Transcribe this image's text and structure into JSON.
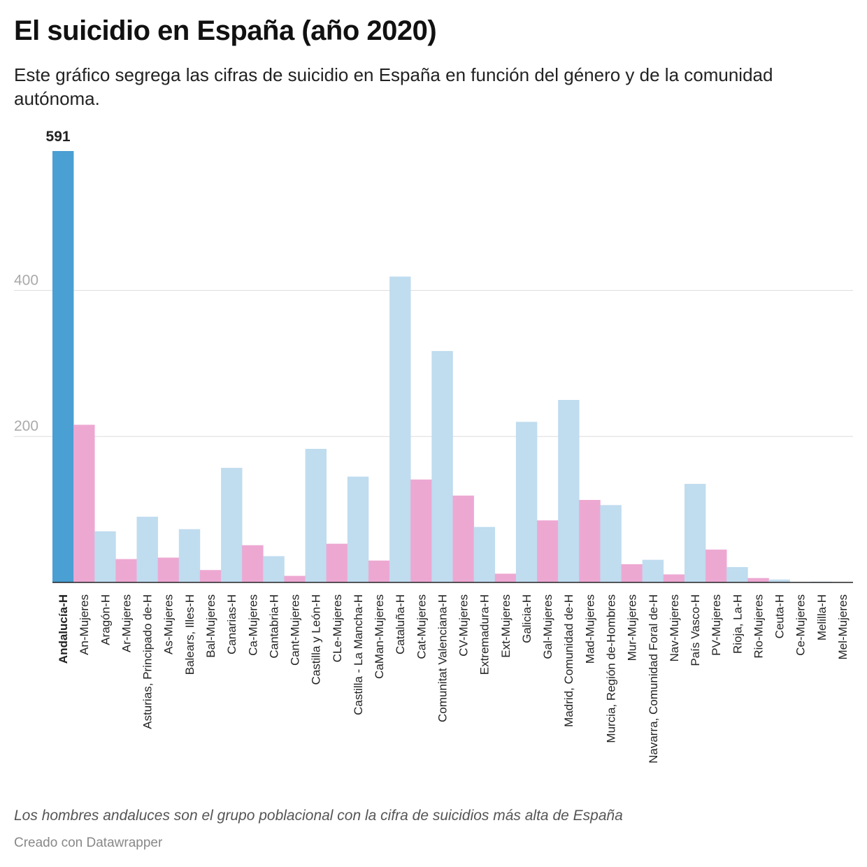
{
  "header": {
    "title": "El suicidio en España (año 2020)",
    "subtitle": "Este gráfico segrega las cifras de suicidio en España en función del género y de la comunidad autónoma."
  },
  "footer": {
    "note": "Los hombres andaluces son el grupo poblacional con la cifra de suicidios más alta de España",
    "credit": "Creado con Datawrapper"
  },
  "colors": {
    "highlight": "#4a9fd3",
    "hombres": "#c0dcef",
    "mujeres": "#eda8d2",
    "grid": "#dddddd",
    "tick_text": "#aaaaaa"
  },
  "chart_data": {
    "type": "bar",
    "ylim": [
      0,
      591
    ],
    "yticks": [
      200,
      400
    ],
    "grid": true,
    "highlight_index": 0,
    "highlight_label": "591",
    "categories": [
      "Andalucía-H",
      "An-Mujeres",
      "Aragón-H",
      "Ar-Mujeres",
      "Asturias, Principado de-H",
      "As-Mujeres",
      "Balears, Illes-H",
      "Bal-Mujeres",
      "Canarias-H",
      "Ca-Mujeres",
      "Cantabria-H",
      "Cant-Mujeres",
      "Castilla y León-H",
      "CLe-Mujeres",
      "Castilla - La Mancha-H",
      "CaMan-Mujeres",
      "Cataluña-H",
      "Cat-Mujeres",
      "Comunitat Valenciana-H",
      "CV-Mujeres",
      "Extremadura-H",
      "Ext-Mujeres",
      "Galicia-H",
      "Gal-Mujeres",
      "Madrid, Comunidad de-H",
      "Mad-Mujeres",
      "Murcia, Región de-Hombres",
      "Mur-Mujeres",
      "Navarra, Comunidad Foral de-H",
      "Nav-Mujeres",
      "País Vasco-H",
      "PV-Mujeres",
      "Rioja, La-H",
      "Rio-Mujeres",
      "Ceuta-H",
      "Ce-Mujeres",
      "Melilla-H",
      "Mel-Mujeres"
    ],
    "values": [
      591,
      216,
      70,
      32,
      90,
      34,
      73,
      17,
      157,
      51,
      36,
      9,
      183,
      53,
      145,
      30,
      419,
      141,
      317,
      119,
      76,
      12,
      220,
      85,
      250,
      113,
      106,
      25,
      31,
      11,
      135,
      45,
      21,
      6,
      4,
      0,
      1,
      0
    ],
    "groups": [
      "hombres",
      "mujeres",
      "hombres",
      "mujeres",
      "hombres",
      "mujeres",
      "hombres",
      "mujeres",
      "hombres",
      "mujeres",
      "hombres",
      "mujeres",
      "hombres",
      "mujeres",
      "hombres",
      "mujeres",
      "hombres",
      "mujeres",
      "hombres",
      "mujeres",
      "hombres",
      "mujeres",
      "hombres",
      "mujeres",
      "hombres",
      "mujeres",
      "hombres",
      "mujeres",
      "hombres",
      "mujeres",
      "hombres",
      "mujeres",
      "hombres",
      "mujeres",
      "hombres",
      "mujeres",
      "hombres",
      "mujeres"
    ]
  }
}
